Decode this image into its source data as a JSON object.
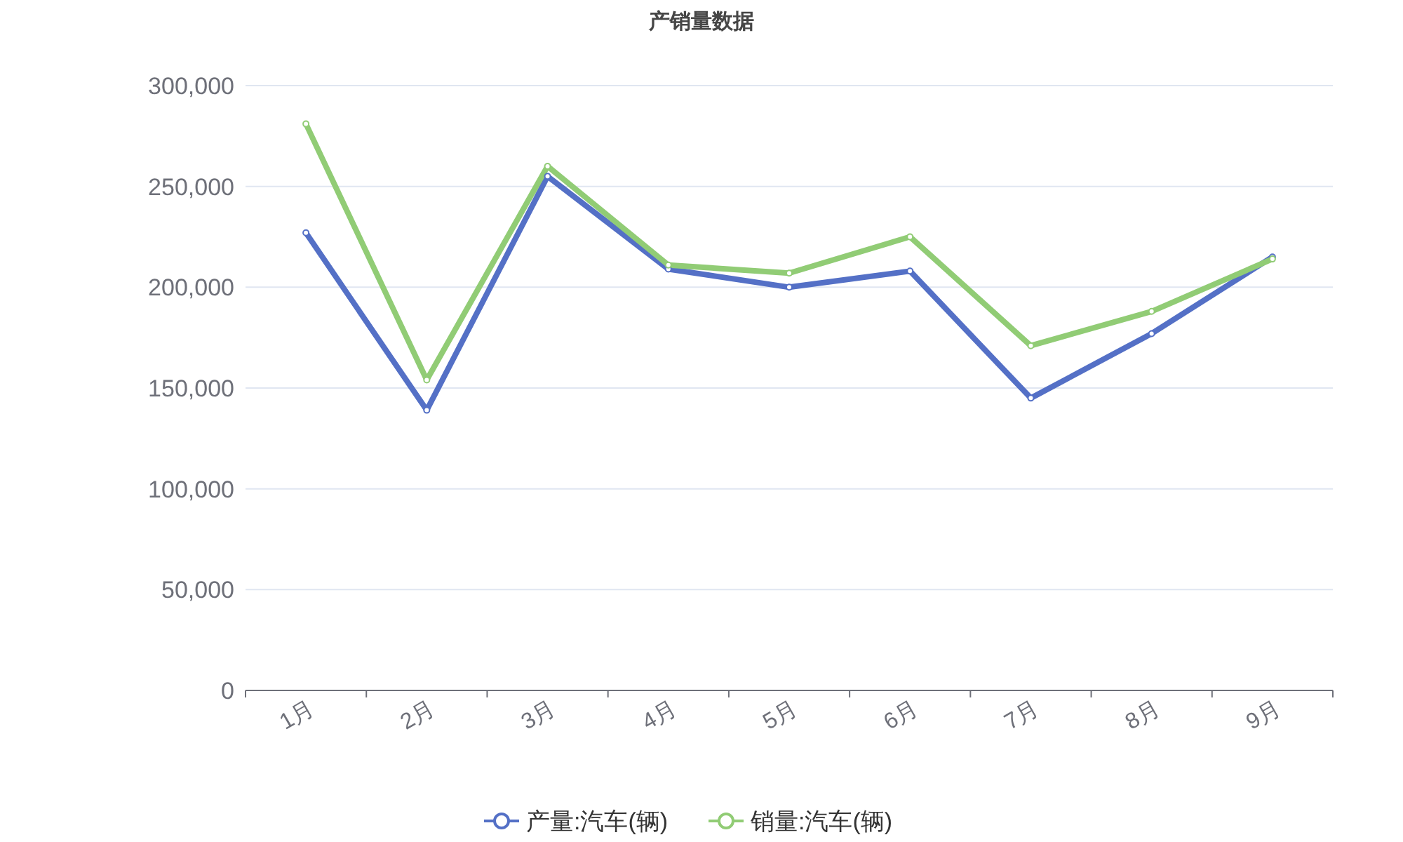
{
  "chart_data": {
    "type": "line",
    "title": "产销量数据",
    "categories": [
      "1月",
      "2月",
      "3月",
      "4月",
      "5月",
      "6月",
      "7月",
      "8月",
      "9月"
    ],
    "series": [
      {
        "name": "产量:汽车(辆)",
        "color": "#5470c6",
        "values": [
          227000,
          139000,
          255000,
          209000,
          200000,
          208000,
          145000,
          177000,
          215000
        ]
      },
      {
        "name": "销量:汽车(辆)",
        "color": "#91cc75",
        "values": [
          281000,
          154000,
          260000,
          211000,
          207000,
          225000,
          171000,
          188000,
          214000
        ]
      }
    ],
    "ylim": [
      0,
      300000
    ],
    "yticks": [
      {
        "value": 0,
        "label": "0"
      },
      {
        "value": 50000,
        "label": "50,000"
      },
      {
        "value": 100000,
        "label": "100,000"
      },
      {
        "value": 150000,
        "label": "150,000"
      },
      {
        "value": 200000,
        "label": "200,000"
      },
      {
        "value": 250000,
        "label": "250,000"
      },
      {
        "value": 300000,
        "label": "300,000"
      }
    ],
    "grid": "y",
    "legend": "bottom",
    "marker": "circle",
    "line_style": "solid"
  }
}
